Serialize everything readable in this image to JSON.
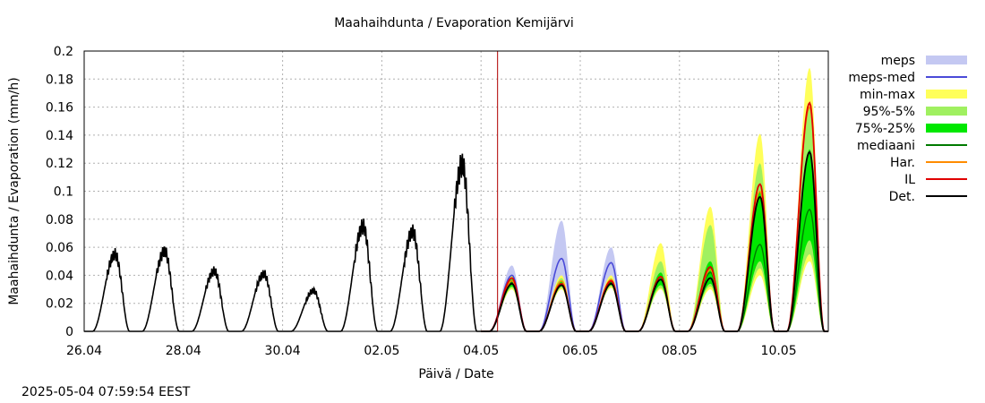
{
  "chart_data": {
    "type": "area",
    "title": "Maahaihdunta / Evaporation  Kemijärvi",
    "xlabel": "Päivä / Date",
    "ylabel": "Maahaihdunta / Evaporation (mm/h)",
    "x_range": [
      "2025-04-26T00:00",
      "2025-05-11T00:00"
    ],
    "ylim": [
      0,
      0.2
    ],
    "x_tick_labels": [
      "26.04",
      "28.04",
      "30.04",
      "02.05",
      "04.05",
      "06.05",
      "08.05",
      "10.05"
    ],
    "y_tick_labels": [
      "0",
      "0.02",
      "0.04",
      "0.06",
      "0.08",
      "0.1",
      "0.12",
      "0.14",
      "0.16",
      "0.18",
      "0.2"
    ],
    "grid": true,
    "legend_position": "right",
    "forecast_start": "2025-05-04T08:00",
    "observed_daily_peaks": [
      {
        "date": "2025-04-26",
        "peak": 0.055
      },
      {
        "date": "2025-04-27",
        "peak": 0.057
      },
      {
        "date": "2025-04-28",
        "peak": 0.043
      },
      {
        "date": "2025-04-29",
        "peak": 0.041
      },
      {
        "date": "2025-04-30",
        "peak": 0.029
      },
      {
        "date": "2025-05-01",
        "peak": 0.075
      },
      {
        "date": "2025-05-02",
        "peak": 0.071
      },
      {
        "date": "2025-05-03",
        "peak": 0.119
      }
    ],
    "forecast_daily_peaks": [
      {
        "date": "2025-05-04",
        "meps_max": 0.047,
        "meps_med": 0.04,
        "min": 0.03,
        "max": 0.04,
        "p5": 0.031,
        "p95": 0.039,
        "p25": 0.032,
        "p75": 0.037,
        "mediaani": 0.035,
        "har": 0.036,
        "il": 0.038,
        "det": 0.034
      },
      {
        "date": "2025-05-05",
        "meps_max": 0.079,
        "meps_med": 0.052,
        "min": 0.03,
        "max": 0.04,
        "p5": 0.031,
        "p95": 0.038,
        "p25": 0.032,
        "p75": 0.036,
        "mediaani": 0.034,
        "har": 0.036,
        "il": 0.034,
        "det": 0.033
      },
      {
        "date": "2025-05-06",
        "meps_max": 0.06,
        "meps_med": 0.049,
        "min": 0.031,
        "max": 0.04,
        "p5": 0.032,
        "p95": 0.038,
        "p25": 0.033,
        "p75": 0.036,
        "mediaani": 0.035,
        "har": 0.037,
        "il": 0.036,
        "det": 0.034
      },
      {
        "date": "2025-05-07",
        "min": 0.03,
        "max": 0.063,
        "p5": 0.031,
        "p95": 0.05,
        "p25": 0.033,
        "p75": 0.042,
        "mediaani": 0.037,
        "har": 0.039,
        "il": 0.039,
        "det": 0.037
      },
      {
        "date": "2025-05-08",
        "min": 0.03,
        "max": 0.089,
        "p5": 0.032,
        "p95": 0.076,
        "p25": 0.034,
        "p75": 0.05,
        "mediaani": 0.042,
        "har": 0.044,
        "il": 0.046,
        "det": 0.038
      },
      {
        "date": "2025-05-09",
        "min": 0.04,
        "max": 0.141,
        "p5": 0.045,
        "p95": 0.12,
        "p25": 0.05,
        "p75": 0.1,
        "mediaani": 0.062,
        "har": 0.1,
        "il": 0.105,
        "det": 0.096
      },
      {
        "date": "2025-05-10",
        "min": 0.05,
        "max": 0.188,
        "p5": 0.055,
        "p95": 0.16,
        "p25": 0.065,
        "p75": 0.13,
        "mediaani": 0.087,
        "har": 0.16,
        "il": 0.163,
        "det": 0.128
      }
    ],
    "series": [
      {
        "name": "meps",
        "kind": "band",
        "color": "#c4c8f2"
      },
      {
        "name": "meps-med",
        "kind": "line",
        "color": "#4a4ad8"
      },
      {
        "name": "min-max",
        "kind": "band",
        "color": "#ffff5a"
      },
      {
        "name": "95%-5%",
        "kind": "band",
        "color": "#a0f060"
      },
      {
        "name": "75%-25%",
        "kind": "band",
        "color": "#00e800"
      },
      {
        "name": "mediaani",
        "kind": "line",
        "color": "#007a00"
      },
      {
        "name": "Har.",
        "kind": "line",
        "color": "#ff8c00"
      },
      {
        "name": "IL",
        "kind": "line",
        "color": "#e00000"
      },
      {
        "name": "Det.",
        "kind": "line",
        "color": "#000000"
      }
    ]
  },
  "footer": {
    "timestamp": "2025-05-04 07:59:54 EEST"
  }
}
